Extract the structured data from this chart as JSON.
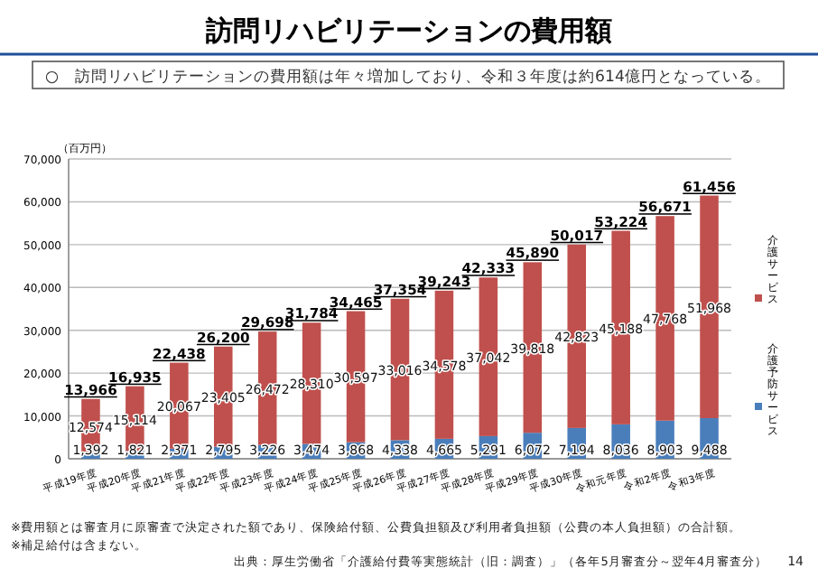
{
  "chart_data": {
    "type": "bar",
    "stacked": true,
    "title": "訪問リハビリテーションの費用額",
    "subtitle": "○　訪問リハビリテーションの費用額は年々増加しており、令和３年度は約614億円となっている。",
    "ylabel": "（百万円）",
    "categories": [
      "平成19年度",
      "平成20年度",
      "平成21年度",
      "平成22年度",
      "平成23年度",
      "平成24年度",
      "平成25年度",
      "平成26年度",
      "平成27年度",
      "平成28年度",
      "平成29年度",
      "平成30年度",
      "令和元年度",
      "令和2年度",
      "令和3年度"
    ],
    "series": [
      {
        "name": "介護予防サービス",
        "color": "#4a7ebb",
        "values": [
          1392,
          1821,
          2371,
          2795,
          3226,
          3474,
          3868,
          4338,
          4665,
          5291,
          6072,
          7194,
          8036,
          8903,
          9488
        ],
        "value_labels": [
          "1,392",
          "1,821",
          "2,371",
          "2,795",
          "3,226",
          "3,474",
          "3,868",
          "4,338",
          "4,665",
          "5,291",
          "6,072",
          "7,194",
          "8,036",
          "8,903",
          "9,488"
        ]
      },
      {
        "name": "介護サービス",
        "color": "#c0504d",
        "values": [
          12574,
          15114,
          20067,
          23405,
          26472,
          28310,
          30597,
          33016,
          34578,
          37042,
          39818,
          42823,
          45188,
          47768,
          51968
        ],
        "value_labels": [
          "12,574",
          "15,114",
          "20,067",
          "23,405",
          "26,472",
          "28,310",
          "30,597",
          "33,016",
          "34,578",
          "37,042",
          "39,818",
          "42,823",
          "45,188",
          "47,768",
          "51,968"
        ]
      }
    ],
    "totals": [
      "13,966",
      "16,935",
      "22,438",
      "26,200",
      "29,698",
      "31,784",
      "34,465",
      "37,354",
      "39,243",
      "42,333",
      "45,890",
      "50,017",
      "53,224",
      "56,671",
      "61,456"
    ],
    "ylim": [
      0,
      70000
    ],
    "yticks": [
      {
        "value": 0,
        "label": "0"
      },
      {
        "value": 10000,
        "label": "10,000"
      },
      {
        "value": 20000,
        "label": "20,000"
      },
      {
        "value": 30000,
        "label": "30,000"
      },
      {
        "value": 40000,
        "label": "40,000"
      },
      {
        "value": 50000,
        "label": "50,000"
      },
      {
        "value": 60000,
        "label": "60,000"
      },
      {
        "value": 70000,
        "label": "70,000"
      }
    ],
    "grid": "y",
    "legend": "right",
    "annotations": [
      "※費用額とは審査月に原審査で決定された額であり、保険給付額、公費負担額及び利用者負担額（公費の本人負担額）の合計額。",
      "※補足給付は含まない。",
      "出典：厚生労働省「介護給付費等実態統計（旧：調査）」（各年5月審査分～翌年4月審査分）",
      "14"
    ]
  }
}
